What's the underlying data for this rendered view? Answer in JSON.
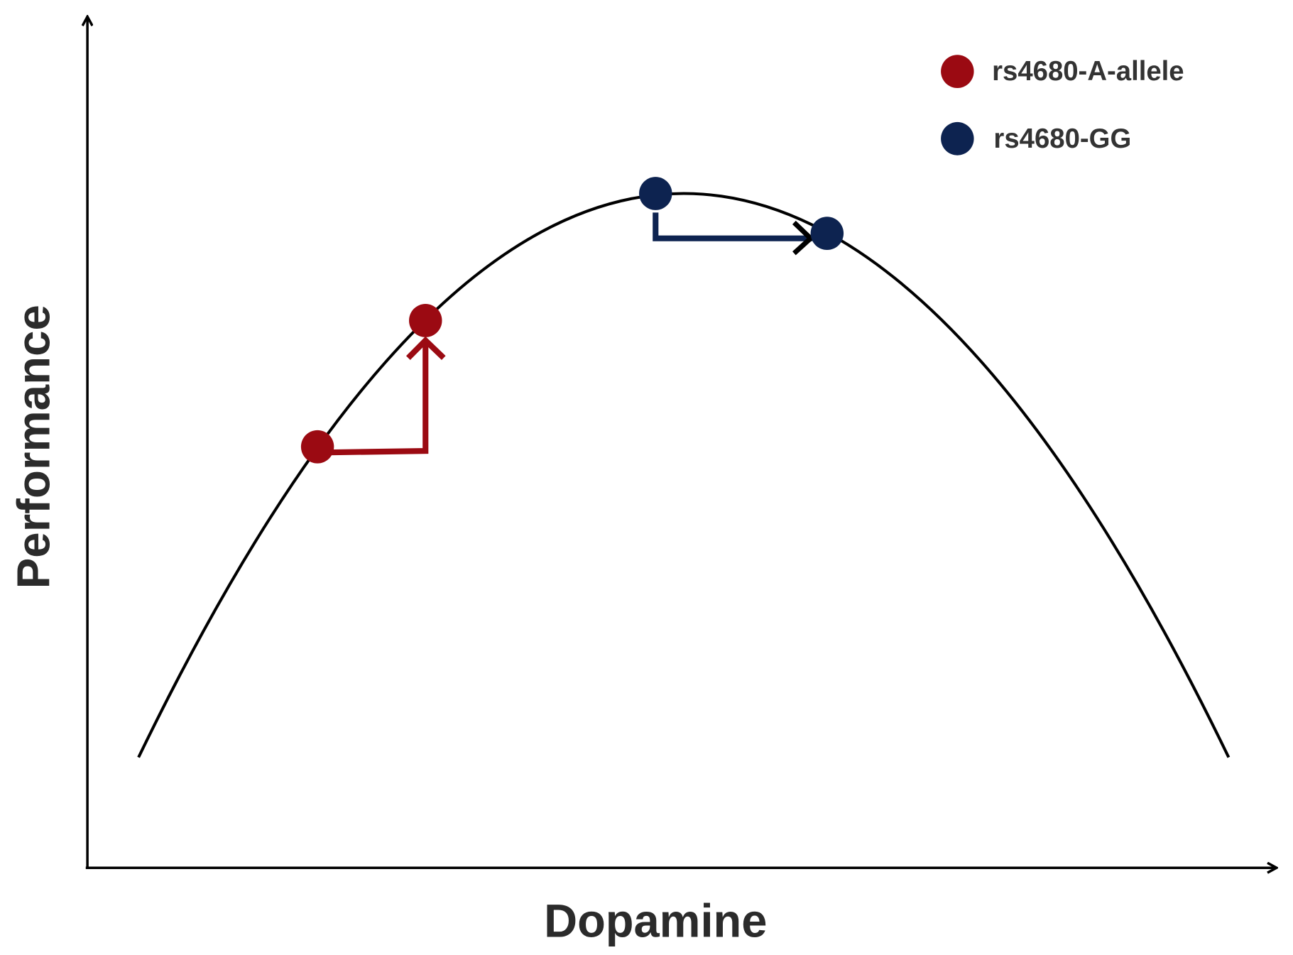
{
  "axes": {
    "x_label": "Dopamine",
    "y_label": "Performance"
  },
  "legend": [
    {
      "label": "rs4680-A-allele"
    },
    {
      "label": "rs4680-GG"
    }
  ]
}
